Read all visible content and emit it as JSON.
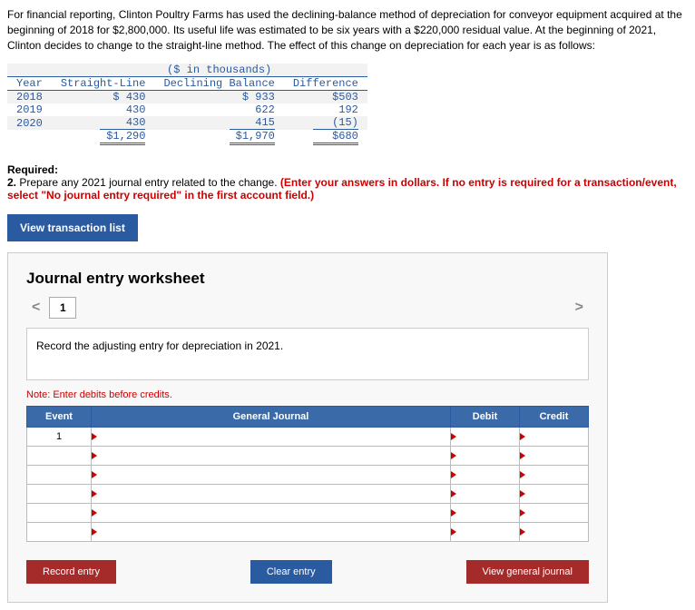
{
  "problem": {
    "p1": "For financial reporting, Clinton Poultry Farms has used the declining-balance method of depreciation for conveyor equipment acquired at the beginning of 2018 for $2,800,000. Its useful life was estimated to be six years with a $220,000 residual value. At the beginning of 2021, Clinton decides to change to the straight-line method. The effect of this change on depreciation for each year is as follows:"
  },
  "table": {
    "unit": "($ in thousands)",
    "headers": {
      "year": "Year",
      "sl": "Straight-Line",
      "db": "Declining Balance",
      "diff": "Difference"
    },
    "rows": [
      {
        "year": "2018",
        "sl": "$ 430",
        "db": "$ 933",
        "diff": "$503"
      },
      {
        "year": "2019",
        "sl": "430",
        "db": "622",
        "diff": "192"
      },
      {
        "year": "2020",
        "sl": "430",
        "db": "415",
        "diff": "(15)"
      }
    ],
    "totals": {
      "sl": "$1,290",
      "db": "$1,970",
      "diff": "$680"
    }
  },
  "required": {
    "heading": "Required:",
    "num": "2.",
    "text": " Prepare any 2021 journal entry related to the change. ",
    "red": "(Enter your answers in dollars. If no entry is required for a transaction/event, select \"No journal entry required\" in the first account field.)"
  },
  "buttons": {
    "view_list": "View transaction list",
    "record": "Record entry",
    "clear": "Clear entry",
    "view_gj": "View general journal"
  },
  "worksheet": {
    "title": "Journal entry worksheet",
    "tab": "1",
    "instruction": "Record the adjusting entry for depreciation in 2021.",
    "note": "Note: Enter debits before credits.",
    "cols": {
      "event": "Event",
      "gj": "General Journal",
      "debit": "Debit",
      "credit": "Credit"
    },
    "first_event": "1"
  }
}
